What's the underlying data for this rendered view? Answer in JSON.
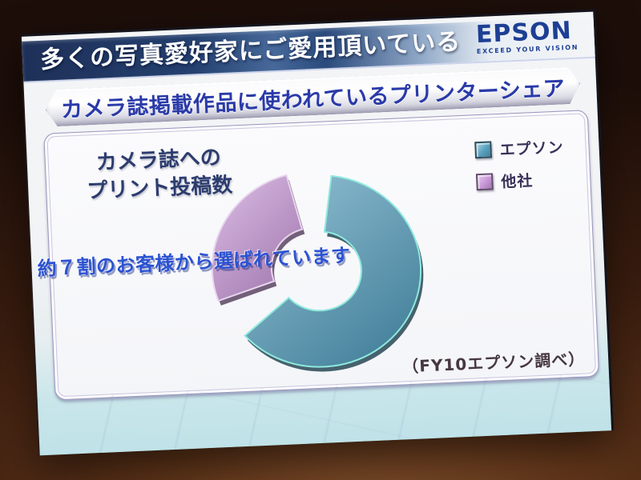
{
  "photo": {
    "background_top": "#1d0e09",
    "background_bottom": "#7c4c2a"
  },
  "logo": {
    "brand": "EPSON",
    "tagline": "EXCEED YOUR VISION",
    "color": "#1d3f94"
  },
  "header": {
    "title": "多くの写真愛好家にご愛用頂いている",
    "text_color": "#ffffff",
    "bg_color": "#24406f"
  },
  "sub_banner": {
    "title": "カメラ誌掲載作品に使われているプリンターシェア",
    "text_color": "#2a3aa8"
  },
  "panel": {
    "chart_title_line1": "カメラ誌への",
    "chart_title_line2": "プリント投稿数",
    "annotation": "約７割のお客様から選ばれています",
    "source": "（FY10エプソン調べ）"
  },
  "chart_data": {
    "type": "pie",
    "donut": true,
    "title": "カメラ誌へのプリント投稿数",
    "labels": [
      "エプソン",
      "他社"
    ],
    "values": [
      70,
      30
    ],
    "unit": "%",
    "colors": [
      "#57a0bf",
      "#c897d8"
    ],
    "highlight_rim": "#8feadd",
    "legend_position": "top-right",
    "annotation": "約７割のお客様から選ばれています",
    "source": "（FY10エプソン調べ）"
  }
}
